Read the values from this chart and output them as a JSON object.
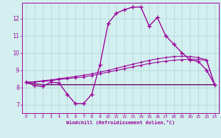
{
  "xlabel": "Windchill (Refroidissement éolien,°C)",
  "background_color": "#d4efef",
  "grid_color": "#b8dede",
  "line_color": "#990099",
  "xlim": [
    -0.5,
    23.5
  ],
  "ylim": [
    6.5,
    12.9
  ],
  "xticks": [
    0,
    1,
    2,
    3,
    4,
    5,
    6,
    7,
    8,
    9,
    10,
    11,
    12,
    13,
    14,
    15,
    16,
    17,
    18,
    19,
    20,
    21,
    22,
    23
  ],
  "yticks": [
    7,
    8,
    9,
    10,
    11,
    12
  ],
  "hours": [
    0,
    1,
    2,
    3,
    4,
    5,
    6,
    7,
    8,
    9,
    10,
    11,
    12,
    13,
    14,
    15,
    16,
    17,
    18,
    19,
    20,
    21,
    22,
    23
  ],
  "temp": [
    8.3,
    8.1,
    8.05,
    8.3,
    8.25,
    7.6,
    7.05,
    7.05,
    7.6,
    9.3,
    11.7,
    12.3,
    12.5,
    12.65,
    12.65,
    11.55,
    12.05,
    11.0,
    10.5,
    10.0,
    9.6,
    9.5,
    9.0,
    8.15
  ],
  "reg1": [
    8.3,
    8.3,
    8.35,
    8.38,
    8.45,
    8.5,
    8.55,
    8.6,
    8.68,
    8.78,
    8.88,
    8.98,
    9.08,
    9.18,
    9.28,
    9.38,
    9.45,
    9.52,
    9.57,
    9.6,
    9.62,
    9.62,
    9.55,
    8.15
  ],
  "reg2": [
    8.3,
    8.32,
    8.38,
    8.43,
    8.5,
    8.56,
    8.63,
    8.7,
    8.78,
    8.88,
    8.98,
    9.1,
    9.22,
    9.34,
    9.45,
    9.56,
    9.65,
    9.72,
    9.78,
    9.8,
    9.78,
    9.72,
    9.6,
    8.15
  ],
  "flat": [
    8.25,
    8.2,
    8.15,
    8.15,
    8.15,
    8.15,
    8.15,
    8.15,
    8.15,
    8.15,
    8.15,
    8.15,
    8.15,
    8.15,
    8.15,
    8.15,
    8.15,
    8.15,
    8.15,
    8.15,
    8.15,
    8.15,
    8.15,
    8.15
  ]
}
